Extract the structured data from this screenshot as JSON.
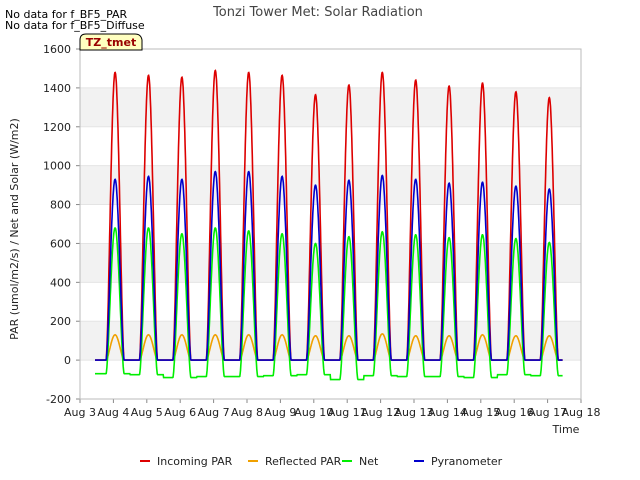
{
  "notes": [
    "No data for f_BF5_PAR",
    "No data for f_BF5_Diffuse"
  ],
  "badge": "TZ_tmet",
  "chart_data": {
    "type": "line",
    "title": "Tonzi Tower Met: Solar Radiation",
    "xlabel": "Time",
    "ylabel": "PAR (umol/m2/s) / Net and Solar (W/m2)",
    "ylim": [
      -200,
      1600
    ],
    "yticks": [
      -200,
      0,
      200,
      400,
      600,
      800,
      1000,
      1200,
      1400,
      1600
    ],
    "xlim": [
      3,
      18
    ],
    "xticks": [
      3,
      4,
      5,
      6,
      7,
      8,
      9,
      10,
      11,
      12,
      13,
      14,
      15,
      16,
      17,
      18
    ],
    "xtick_labels": [
      "Aug 3",
      "Aug 4",
      "Aug 5",
      "Aug 6",
      "Aug 7",
      "Aug 8",
      "Aug 9",
      "Aug 10",
      "Aug 11",
      "Aug 12",
      "Aug 13",
      "Aug 14",
      "Aug 15",
      "Aug 16",
      "Aug 17",
      "Aug 18"
    ],
    "grid": "horizontal bands",
    "legend_position": "bottom",
    "days": [
      4,
      5,
      6,
      7,
      8,
      9,
      10,
      11,
      12,
      13,
      14,
      15,
      16,
      17
    ],
    "series": [
      {
        "name": "Incoming PAR",
        "color": "#dd0000",
        "night": 0,
        "daily_peaks": [
          1480,
          1465,
          1455,
          1490,
          1480,
          1465,
          1365,
          1415,
          1480,
          1440,
          1410,
          1425,
          1380,
          1350
        ]
      },
      {
        "name": "Reflected PAR",
        "color": "#f0a000",
        "night": 0,
        "daily_peaks": [
          130,
          130,
          130,
          130,
          130,
          130,
          125,
          125,
          135,
          125,
          125,
          130,
          125,
          125
        ]
      },
      {
        "name": "Net",
        "color": "#00ee00",
        "daily_peaks": [
          680,
          680,
          650,
          680,
          665,
          650,
          600,
          635,
          660,
          645,
          630,
          645,
          625,
          605
        ],
        "night_values": [
          -70,
          -75,
          -90,
          -85,
          -85,
          -80,
          -75,
          -100,
          -80,
          -85,
          -85,
          -90,
          -75,
          -80
        ]
      },
      {
        "name": "Pyranometer",
        "color": "#0000cc",
        "night": 0,
        "daily_peaks": [
          930,
          945,
          930,
          970,
          970,
          945,
          900,
          925,
          950,
          930,
          910,
          915,
          895,
          880
        ]
      }
    ]
  }
}
